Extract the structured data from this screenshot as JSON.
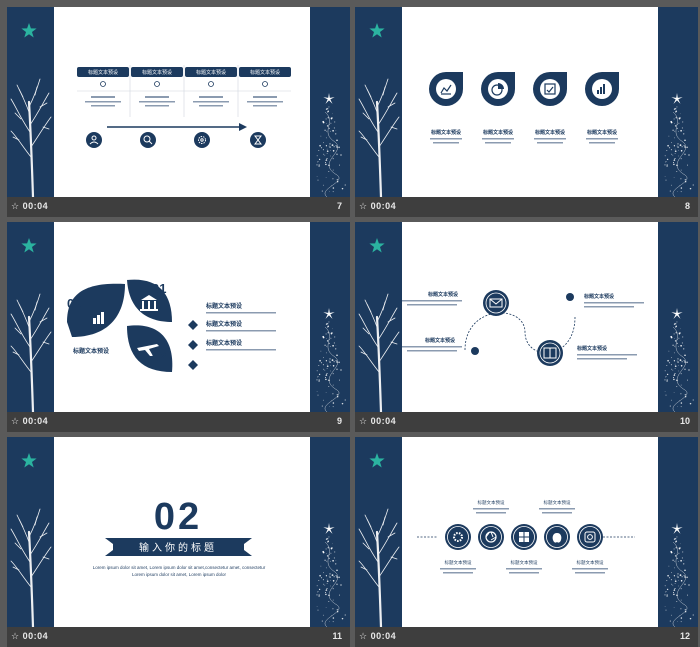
{
  "slides": [
    {
      "time": "00:04",
      "number": "7"
    },
    {
      "time": "00:04",
      "number": "8"
    },
    {
      "time": "00:04",
      "number": "9"
    },
    {
      "time": "00:04",
      "number": "10"
    },
    {
      "time": "00:04",
      "number": "11"
    },
    {
      "time": "00:04",
      "number": "12"
    }
  ],
  "timing_glyph": "☆",
  "slide11": {
    "number": "02",
    "title": "输入你的标题",
    "body": "Lorem ipsum dolor sit amet, Lorem ipsum dolor sit amet,consectetur amet, consectetur Lorem ipsum dolor sit amet, Lorem ipsum dolor"
  },
  "slide9": {
    "n1": "01",
    "n2": "02",
    "n3": "03",
    "center": "标题文本预设",
    "items": [
      "标题文本预设",
      "标题文本预设",
      "标题文本预设"
    ]
  },
  "slide10": {
    "labels": [
      "标题文本预设",
      "标题文本预设",
      "标题文本预设",
      "标题文本预设"
    ]
  },
  "slide8": {
    "labels": [
      "标题文本预设",
      "标题文本预设",
      "标题文本预设",
      "标题文本预设"
    ]
  },
  "slide7": {
    "labels": [
      "标题文本预设",
      "标题文本预设",
      "标题文本预设",
      "标题文本预设"
    ]
  },
  "slide12": {
    "labels": [
      "标题文本预设",
      "标题文本预设",
      "标题文本预设",
      "标题文本预设",
      "标题文本预设"
    ]
  },
  "colors": {
    "navy": "#1c3a5e",
    "teal": "#2bb3a0",
    "footer": "#3e3e3e",
    "background": "#5a5a5a"
  }
}
